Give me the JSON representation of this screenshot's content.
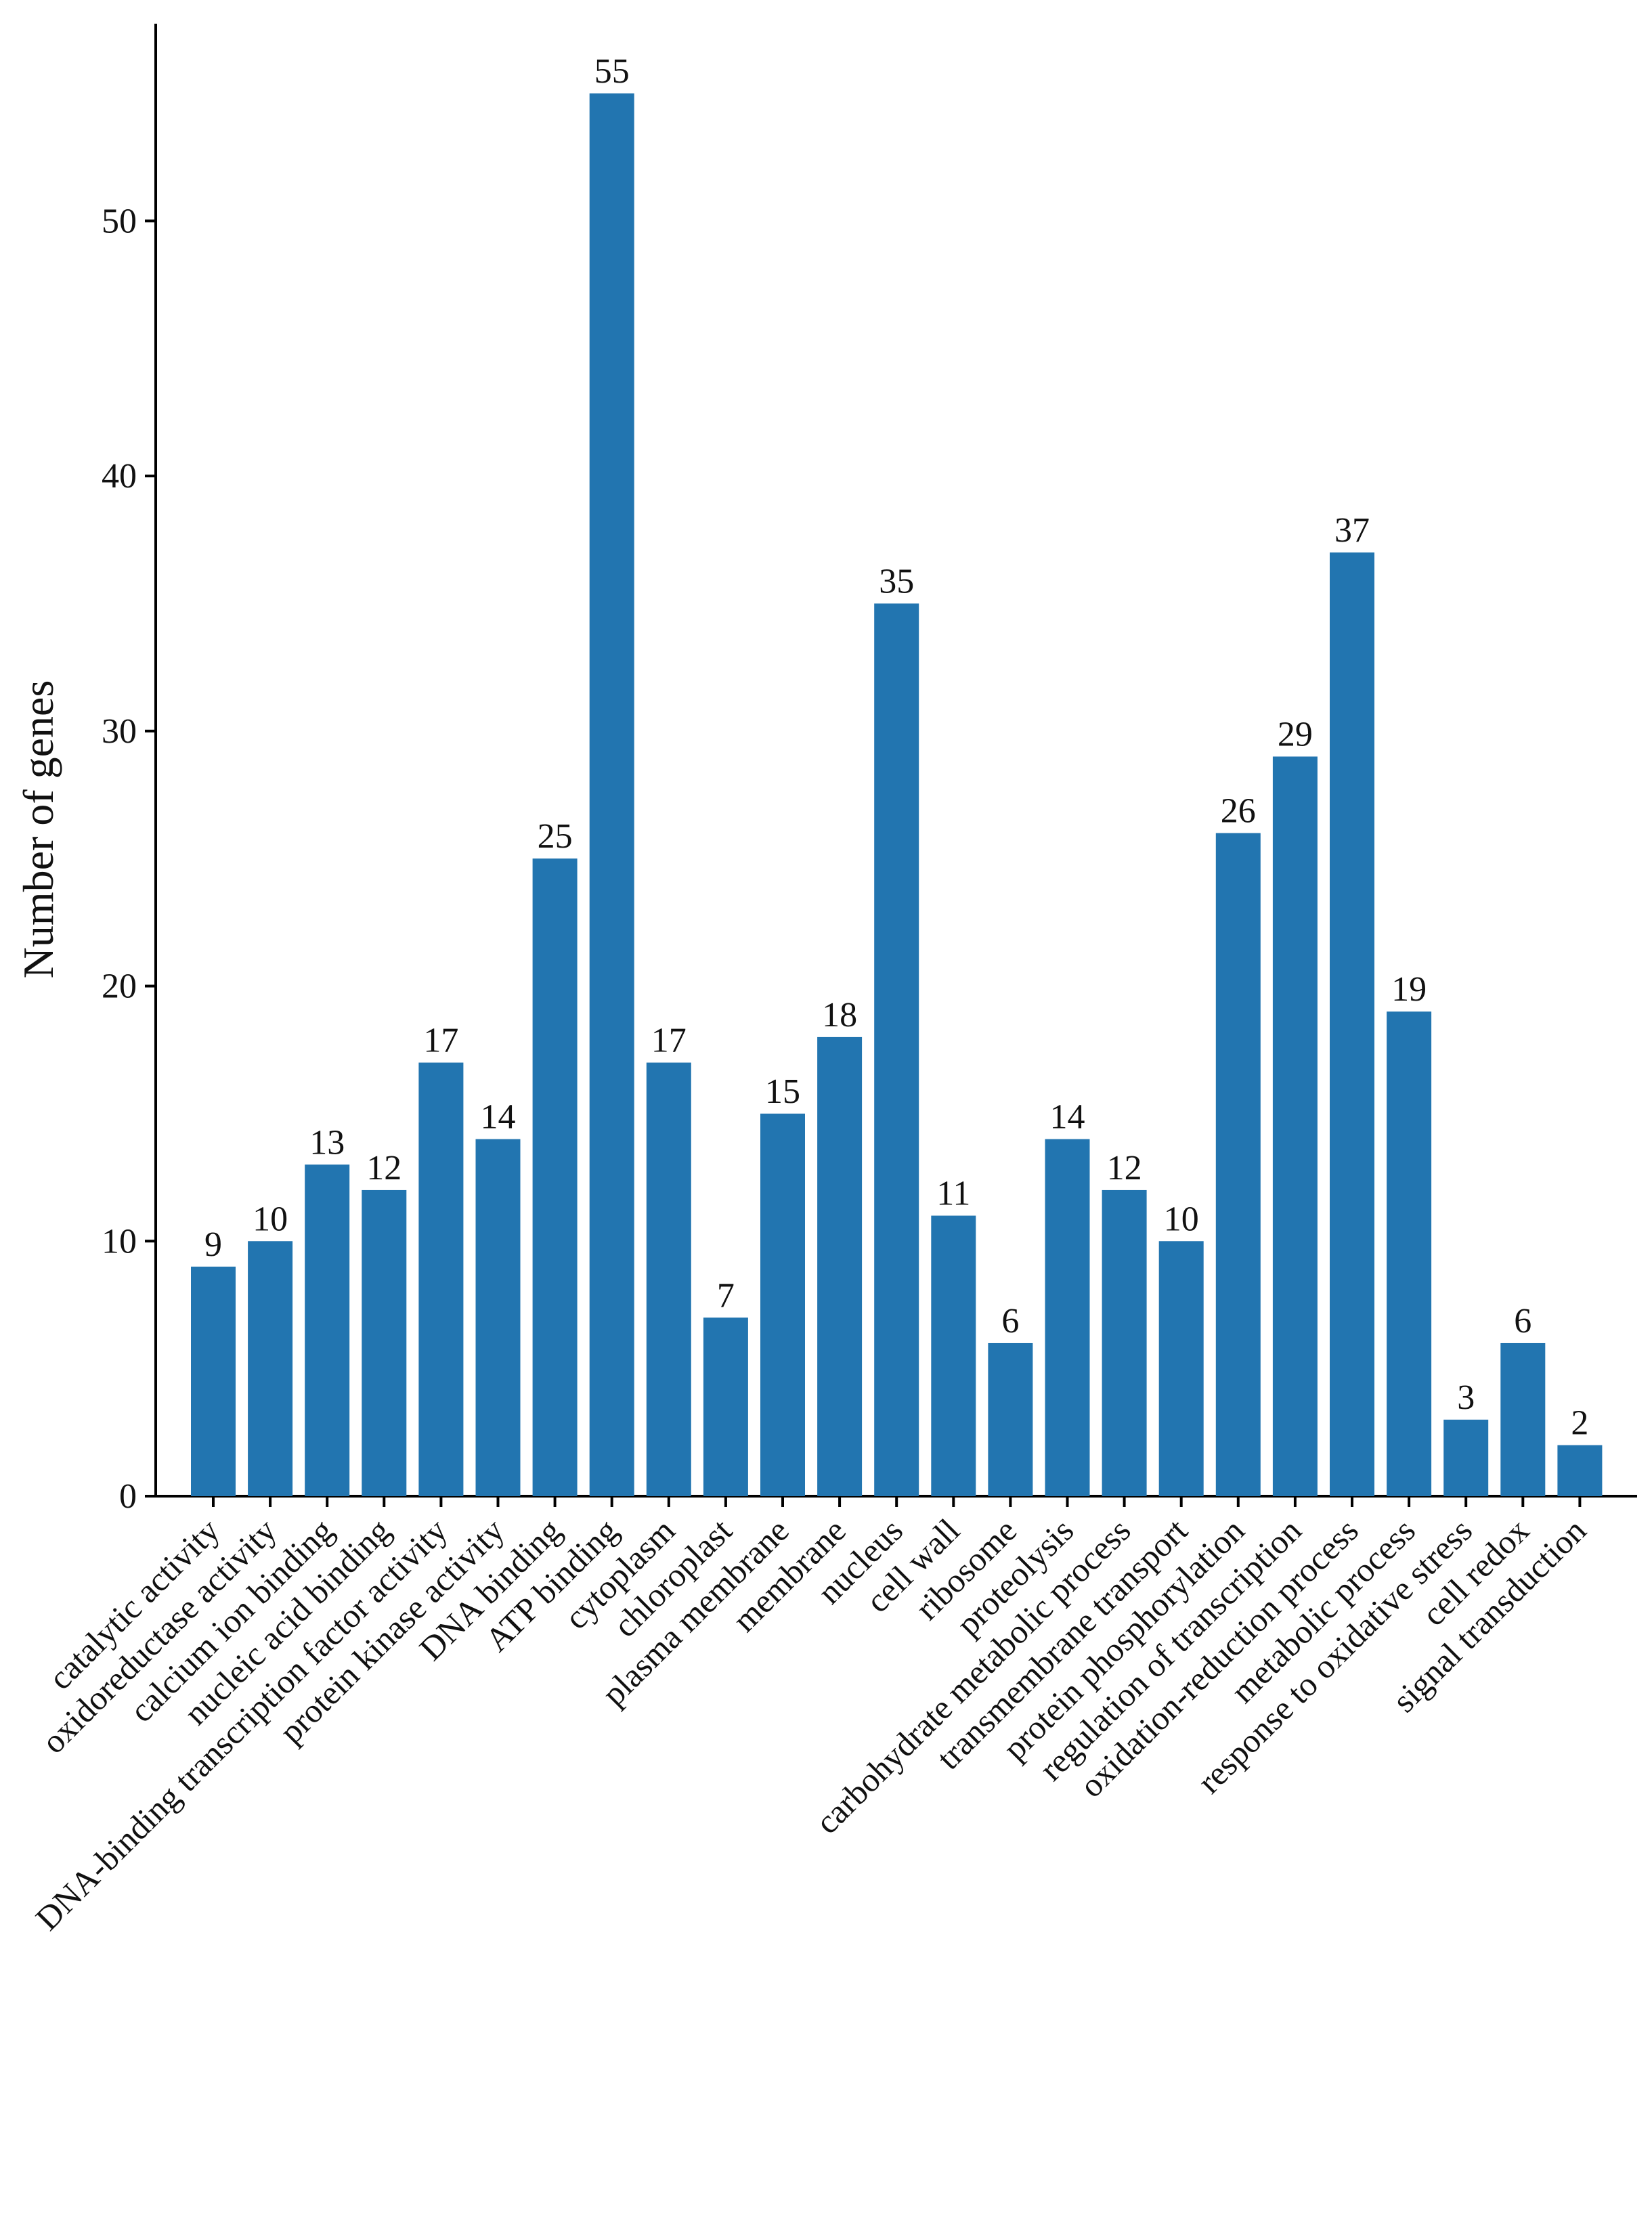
{
  "chart_data": {
    "type": "bar",
    "title": "",
    "xlabel": "",
    "ylabel": "Number of genes",
    "ylim": [
      0,
      58
    ],
    "yticks": [
      0,
      10,
      20,
      30,
      40,
      50
    ],
    "grid": false,
    "bar_color": "#2275b0",
    "categories": [
      "catalytic activity",
      "oxidoreductase activity",
      "calcium ion binding",
      "nucleic acid binding",
      "DNA-binding transcription factor activity",
      "protein kinase activity",
      "DNA binding",
      "ATP binding",
      "cytoplasm",
      "chloroplast",
      "plasma membrane",
      "membrane",
      "nucleus",
      "cell wall",
      "ribosome",
      "proteolysis",
      "carbohydrate metabolic process",
      "transmembrane transport",
      "protein phosphorylation",
      "regulation of transcription",
      "oxidation-reduction process",
      "metabolic process",
      "response to oxidative stress",
      "cell redox",
      "signal transduction"
    ],
    "values": [
      9,
      10,
      13,
      12,
      17,
      14,
      25,
      55,
      17,
      7,
      15,
      18,
      35,
      11,
      6,
      14,
      12,
      10,
      26,
      29,
      37,
      19,
      3,
      6,
      2
    ]
  }
}
